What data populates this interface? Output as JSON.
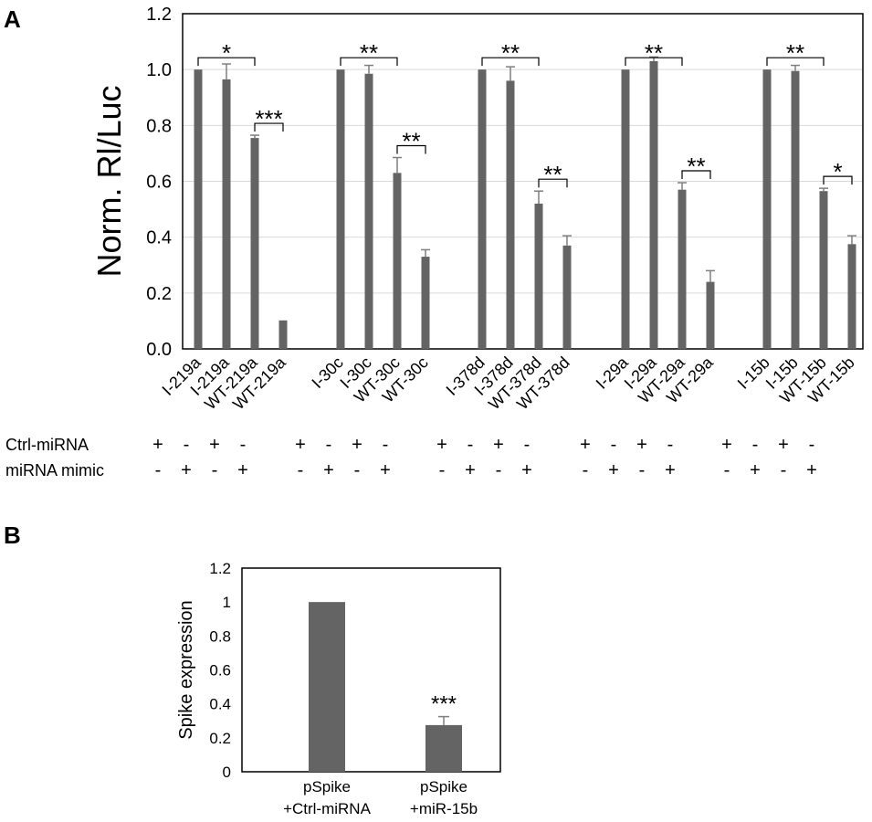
{
  "panel_labels": {
    "a": "A",
    "b": "B"
  },
  "row_labels": {
    "ctrl": "Ctrl-miRNA",
    "mimic": "miRNA mimic"
  },
  "chart_data": [
    {
      "type": "bar",
      "panel": "A",
      "ylabel": "Norm. Rl/Luc",
      "xlabel": "",
      "ylim": [
        0,
        1.2
      ],
      "yticks": [
        "0.0",
        "0.2",
        "0.4",
        "0.6",
        "0.8",
        "1.0",
        "1.2"
      ],
      "grid": true,
      "bar_color": "#646464",
      "groups": [
        {
          "categories": [
            "I-219a",
            "I-219a",
            "WT-219a",
            "WT-219a"
          ],
          "values": [
            1.0,
            0.965,
            0.755,
            0.102
          ],
          "errors": [
            0.0,
            0.055,
            0.01,
            0.0
          ],
          "ctrl": [
            "+",
            "-",
            "+",
            "-"
          ],
          "mimic": [
            "-",
            "+",
            "-",
            "+"
          ],
          "sig": [
            {
              "from": 0,
              "to": 2,
              "label": "*"
            },
            {
              "from": 2,
              "to": 3,
              "label": "***"
            }
          ]
        },
        {
          "categories": [
            "I-30c",
            "I-30c",
            "WT-30c",
            "WT-30c"
          ],
          "values": [
            1.0,
            0.985,
            0.63,
            0.33
          ],
          "errors": [
            0.0,
            0.03,
            0.055,
            0.025
          ],
          "ctrl": [
            "+",
            "-",
            "+",
            "-"
          ],
          "mimic": [
            "-",
            "+",
            "-",
            "+"
          ],
          "sig": [
            {
              "from": 0,
              "to": 2,
              "label": "**"
            },
            {
              "from": 2,
              "to": 3,
              "label": "**"
            }
          ]
        },
        {
          "categories": [
            "I-378d",
            "I-378d",
            "WT-378d",
            "WT-378d"
          ],
          "values": [
            1.0,
            0.96,
            0.52,
            0.37
          ],
          "errors": [
            0.0,
            0.05,
            0.045,
            0.035
          ],
          "ctrl": [
            "+",
            "-",
            "+",
            "-"
          ],
          "mimic": [
            "-",
            "+",
            "-",
            "+"
          ],
          "sig": [
            {
              "from": 0,
              "to": 2,
              "label": "**"
            },
            {
              "from": 2,
              "to": 3,
              "label": "**"
            }
          ]
        },
        {
          "categories": [
            "I-29a",
            "I-29a",
            "WT-29a",
            "WT-29a"
          ],
          "values": [
            1.0,
            1.03,
            0.57,
            0.24
          ],
          "errors": [
            0.0,
            0.015,
            0.025,
            0.04
          ],
          "ctrl": [
            "+",
            "-",
            "+",
            "-"
          ],
          "mimic": [
            "-",
            "+",
            "-",
            "+"
          ],
          "sig": [
            {
              "from": 0,
              "to": 2,
              "label": "**"
            },
            {
              "from": 2,
              "to": 3,
              "label": "**"
            }
          ]
        },
        {
          "categories": [
            "I-15b",
            "I-15b",
            "WT-15b",
            "WT-15b"
          ],
          "values": [
            1.0,
            0.995,
            0.565,
            0.375
          ],
          "errors": [
            0.0,
            0.02,
            0.01,
            0.03
          ],
          "ctrl": [
            "+",
            "-",
            "+",
            "-"
          ],
          "mimic": [
            "-",
            "+",
            "-",
            "+"
          ],
          "sig": [
            {
              "from": 0,
              "to": 2,
              "label": "**"
            },
            {
              "from": 2,
              "to": 3,
              "label": "*"
            }
          ]
        }
      ]
    },
    {
      "type": "bar",
      "panel": "B",
      "ylabel": "Spike expression",
      "xlabel": "",
      "ylim": [
        0,
        1.2
      ],
      "yticks": [
        "0",
        "0.2",
        "0.4",
        "0.6",
        "0.8",
        "1",
        "1.2"
      ],
      "grid": false,
      "bar_color": "#646464",
      "categories": [
        [
          "pSpike",
          "+Ctrl-miRNA"
        ],
        [
          "pSpike",
          "+miR-15b"
        ]
      ],
      "values": [
        1.0,
        0.275
      ],
      "errors": [
        0.0,
        0.05
      ],
      "annotations": [
        "",
        "***"
      ]
    }
  ]
}
